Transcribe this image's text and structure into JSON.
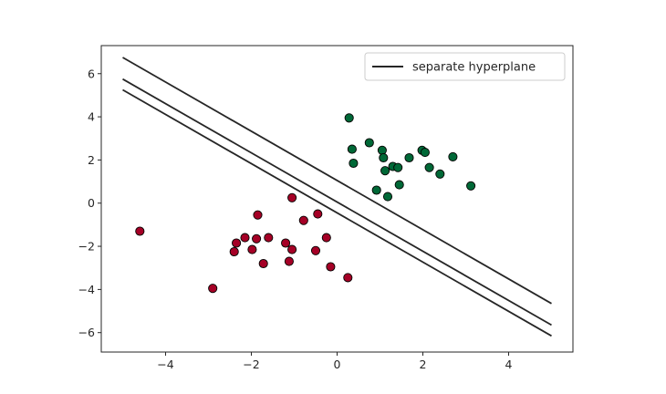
{
  "chart_data": {
    "type": "scatter",
    "title": "",
    "xlabel": "",
    "ylabel": "",
    "xlim": [
      -5.5,
      5.5
    ],
    "ylim": [
      -6.9,
      7.3
    ],
    "x_ticks": [
      -4,
      -2,
      0,
      2,
      4
    ],
    "y_ticks": [
      -6,
      -4,
      -2,
      0,
      2,
      4,
      6
    ],
    "x_tick_labels": [
      "−4",
      "−2",
      "0",
      "2",
      "4"
    ],
    "y_tick_labels": [
      "−6",
      "−4",
      "−2",
      "0",
      "2",
      "4",
      "6"
    ],
    "grid": false,
    "legend": {
      "position": "upper-right",
      "entries": [
        "separate hyperplane"
      ]
    },
    "colors": {
      "class_positive": "#006837",
      "class_negative": "#a50026",
      "line": "#262626",
      "point_edge": "#000000",
      "frame": "#262626"
    },
    "lines": [
      {
        "name": "separate hyperplane",
        "x": [
          -5,
          5
        ],
        "y": [
          6.75,
          -4.65
        ]
      },
      {
        "x": [
          -5,
          5
        ],
        "y": [
          5.75,
          -5.65
        ]
      },
      {
        "x": [
          -5,
          5
        ],
        "y": [
          5.25,
          -6.15
        ]
      }
    ],
    "series": [
      {
        "class": "positive",
        "points": [
          [
            0.28,
            3.95
          ],
          [
            0.35,
            2.5
          ],
          [
            0.38,
            1.85
          ],
          [
            0.75,
            2.8
          ],
          [
            1.05,
            2.45
          ],
          [
            1.08,
            2.1
          ],
          [
            1.12,
            1.5
          ],
          [
            0.92,
            0.6
          ],
          [
            1.18,
            0.3
          ],
          [
            1.3,
            1.7
          ],
          [
            1.42,
            1.65
          ],
          [
            1.45,
            0.85
          ],
          [
            1.68,
            2.1
          ],
          [
            1.98,
            2.45
          ],
          [
            2.05,
            2.35
          ],
          [
            2.15,
            1.65
          ],
          [
            2.4,
            1.35
          ],
          [
            2.7,
            2.15
          ],
          [
            3.12,
            0.8
          ]
        ]
      },
      {
        "class": "negative",
        "points": [
          [
            -4.6,
            -1.3
          ],
          [
            -2.9,
            -3.95
          ],
          [
            -2.4,
            -2.25
          ],
          [
            -2.35,
            -1.85
          ],
          [
            -2.15,
            -1.6
          ],
          [
            -1.98,
            -2.15
          ],
          [
            -1.88,
            -1.65
          ],
          [
            -1.85,
            -0.55
          ],
          [
            -1.72,
            -2.8
          ],
          [
            -1.6,
            -1.6
          ],
          [
            -1.2,
            -1.85
          ],
          [
            -1.12,
            -2.7
          ],
          [
            -1.05,
            -2.15
          ],
          [
            -1.05,
            0.25
          ],
          [
            -0.78,
            -0.8
          ],
          [
            -0.5,
            -2.2
          ],
          [
            -0.45,
            -0.5
          ],
          [
            -0.25,
            -1.6
          ],
          [
            -0.15,
            -2.95
          ],
          [
            0.25,
            -3.45
          ]
        ]
      }
    ]
  }
}
